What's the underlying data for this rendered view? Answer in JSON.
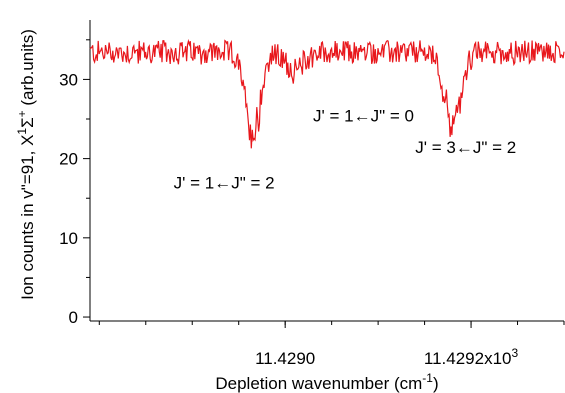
{
  "chart_data": {
    "type": "line",
    "xlabel": "Depletion wavenumber (cm",
    "xlabel_sup": "-1",
    "xlabel_end": ")",
    "ylabel_parts": [
      {
        "t": "Ion counts in v\"=91, X"
      },
      {
        "t": "1",
        "sup": true
      },
      {
        "t": "Σ"
      },
      {
        "t": "+",
        "sup": true
      },
      {
        "t": " (arb.units)"
      }
    ],
    "xlim": [
      11428.79,
      11429.3
    ],
    "ylim": [
      -0.5,
      37.5
    ],
    "yticks": [
      {
        "value": 0,
        "label": "0"
      },
      {
        "value": 10,
        "label": "10"
      },
      {
        "value": 20,
        "label": "20"
      },
      {
        "value": 30,
        "label": "30"
      }
    ],
    "xticks": [
      {
        "value": 11429.0,
        "label": "11.4290"
      },
      {
        "value": 11429.2,
        "label": "11.4292x10",
        "sup": "3"
      }
    ],
    "line_color": "#e8171c",
    "baseline": 33.4,
    "noise_amplitude": 1.1,
    "dips": [
      {
        "center": 11428.965,
        "depth": 10.5,
        "width": 0.008
      },
      {
        "center": 11429.01,
        "depth": 2.2,
        "width": 0.01
      },
      {
        "center": 11429.18,
        "depth": 9.0,
        "width": 0.009
      }
    ],
    "annotations": [
      {
        "text": "J' = 1←J\" = 0",
        "x": 11429.03,
        "y": 24.7
      },
      {
        "text": "J' = 1←J\" = 2",
        "x": 11428.88,
        "y": 16.2
      },
      {
        "text": "J' = 3←J\" = 2",
        "x": 11429.14,
        "y": 20.7
      }
    ],
    "grid": false,
    "legend": "none"
  }
}
